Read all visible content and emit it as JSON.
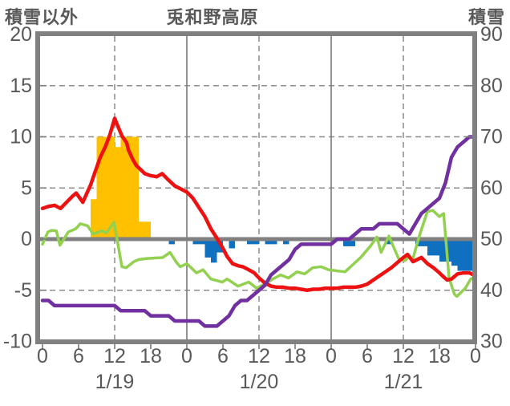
{
  "title": "兎和野高原",
  "left_axis_title": "積雪以外",
  "right_axis_title": "積雪",
  "colors": {
    "frame": "#808080",
    "grid": "#8c8c8c",
    "text": "#595959",
    "red": "#ee1111",
    "green": "#92d050",
    "purple": "#7030a0",
    "orange": "#ffc000",
    "blue": "#1070c0"
  },
  "chart_data": {
    "type": "combo",
    "title": "兎和野高原",
    "left_axis": {
      "title": "積雪以外",
      "min": -10,
      "max": 20,
      "ticks": [
        20,
        15,
        10,
        5,
        0,
        -5,
        -10
      ]
    },
    "right_axis": {
      "title": "積雪",
      "min": 30,
      "max": 90,
      "ticks": [
        90,
        80,
        70,
        60,
        50,
        40,
        30
      ]
    },
    "x_axis": {
      "hours_total": 72,
      "tick_step_hours": 6,
      "tick_labels": [
        "0",
        "6",
        "12",
        "18",
        "0",
        "6",
        "12",
        "18",
        "0",
        "6",
        "12",
        "18",
        "0"
      ],
      "date_labels": [
        "1/19",
        "1/20",
        "1/21"
      ],
      "day_boundaries_hours": [
        24,
        48
      ],
      "noon_gridlines_hours": [
        12,
        36,
        60
      ]
    },
    "series": [
      {
        "name": "orange-bars",
        "type": "bar",
        "axis": "left",
        "color": "#ffc000",
        "points": [
          [
            8,
            3.9
          ],
          [
            9,
            10
          ],
          [
            10,
            10
          ],
          [
            11,
            10
          ],
          [
            12,
            9
          ],
          [
            13,
            10
          ],
          [
            14,
            10
          ],
          [
            15,
            10
          ],
          [
            16,
            1.7
          ],
          [
            17,
            1.7
          ]
        ]
      },
      {
        "name": "blue-bars",
        "type": "bar",
        "axis": "left",
        "color": "#1070c0",
        "points": [
          [
            21,
            -0.5
          ],
          [
            25,
            -0.5
          ],
          [
            26,
            -0.5
          ],
          [
            27,
            -1.8
          ],
          [
            28,
            -2.3
          ],
          [
            29,
            -1.3
          ],
          [
            31,
            -0.9
          ],
          [
            34,
            -0.5
          ],
          [
            35,
            -0.5
          ],
          [
            37,
            -0.5
          ],
          [
            38,
            -0.5
          ],
          [
            40,
            -0.5
          ],
          [
            50,
            -0.7
          ],
          [
            51,
            -0.7
          ],
          [
            57,
            -0.5
          ],
          [
            62,
            -0.7
          ],
          [
            63,
            -0.7
          ],
          [
            64,
            -1.6
          ],
          [
            65,
            -1.6
          ],
          [
            66,
            -2.2
          ],
          [
            67,
            -2.2
          ],
          [
            68,
            -2.6
          ],
          [
            69,
            -3.1
          ],
          [
            70,
            -3.1
          ],
          [
            71,
            -3.1
          ]
        ]
      },
      {
        "name": "green-line",
        "type": "line",
        "axis": "left",
        "color": "#92d050",
        "width": 3.5,
        "points": [
          [
            0,
            -0.5
          ],
          [
            0.9,
            0.7
          ],
          [
            1.5,
            0.85
          ],
          [
            2.3,
            0.8
          ],
          [
            2.9,
            -0.6
          ],
          [
            4.3,
            0.7
          ],
          [
            5.5,
            1.0
          ],
          [
            6.3,
            1.5
          ],
          [
            7.5,
            1.3
          ],
          [
            8.4,
            0.5
          ],
          [
            9.9,
            0.8
          ],
          [
            10.6,
            0.6
          ],
          [
            11.9,
            1.65
          ],
          [
            13.2,
            -2.7
          ],
          [
            13.9,
            -2.8
          ],
          [
            15.2,
            -2.2
          ],
          [
            16,
            -2.0
          ],
          [
            17.2,
            -1.9
          ],
          [
            18.5,
            -1.85
          ],
          [
            20,
            -1.8
          ],
          [
            21.2,
            -1.3
          ],
          [
            22.3,
            -2.3
          ],
          [
            22.9,
            -2.7
          ],
          [
            24,
            -2.4
          ],
          [
            25.6,
            -3.3
          ],
          [
            26.7,
            -3.0
          ],
          [
            28,
            -3.9
          ],
          [
            29.9,
            -4.2
          ],
          [
            30.7,
            -3.9
          ],
          [
            32.5,
            -4.6
          ],
          [
            34.3,
            -4.2
          ],
          [
            35.6,
            -4.8
          ],
          [
            36.9,
            -4.4
          ],
          [
            38.3,
            -3.9
          ],
          [
            39.6,
            -3.5
          ],
          [
            40.9,
            -3.8
          ],
          [
            42.3,
            -3.2
          ],
          [
            43.6,
            -3.4
          ],
          [
            44.9,
            -2.8
          ],
          [
            46.3,
            -2.7
          ],
          [
            47.6,
            -3.0
          ],
          [
            50.3,
            -3.2
          ],
          [
            52.9,
            -1.8
          ],
          [
            54.5,
            -0.7
          ],
          [
            55.6,
            0.2
          ],
          [
            56.3,
            -1.3
          ],
          [
            57.6,
            0.3
          ],
          [
            59.2,
            -1.9
          ],
          [
            60.3,
            -2.1
          ],
          [
            60.9,
            -1.7
          ],
          [
            61.5,
            -2.1
          ],
          [
            62.7,
            0.4
          ],
          [
            64,
            2.7
          ],
          [
            64.9,
            2.8
          ],
          [
            66,
            2.2
          ],
          [
            66.7,
            2.5
          ],
          [
            67.6,
            -3.8
          ],
          [
            68.5,
            -5.4
          ],
          [
            68.9,
            -5.6
          ],
          [
            70.3,
            -4.8
          ],
          [
            71.2,
            -3.9
          ],
          [
            72,
            -3.7
          ]
        ]
      },
      {
        "name": "red-line",
        "type": "line",
        "axis": "left",
        "color": "#ee1111",
        "width": 4.5,
        "points": [
          [
            0,
            3.0
          ],
          [
            1,
            3.2
          ],
          [
            2,
            3.3
          ],
          [
            3,
            3.0
          ],
          [
            4,
            3.6
          ],
          [
            5,
            4.2
          ],
          [
            5.6,
            4.5
          ],
          [
            6.7,
            3.6
          ],
          [
            8,
            5.3
          ],
          [
            8.7,
            6.5
          ],
          [
            9.6,
            8.0
          ],
          [
            10.5,
            9.1
          ],
          [
            11.2,
            10.2
          ],
          [
            12,
            11.8
          ],
          [
            12.7,
            10.8
          ],
          [
            13.2,
            10.1
          ],
          [
            14,
            9.4
          ],
          [
            14.3,
            8.7
          ],
          [
            15,
            7.8
          ],
          [
            15.6,
            7.2
          ],
          [
            16.3,
            6.8
          ],
          [
            17,
            6.4
          ],
          [
            18,
            6.2
          ],
          [
            19,
            6.1
          ],
          [
            19.9,
            6.4
          ],
          [
            20.9,
            5.8
          ],
          [
            22,
            5.2
          ],
          [
            23,
            4.9
          ],
          [
            24,
            4.6
          ],
          [
            25,
            4.0
          ],
          [
            26,
            3.1
          ],
          [
            27,
            2.2
          ],
          [
            28,
            1.0
          ],
          [
            29,
            0.1
          ],
          [
            30,
            -0.9
          ],
          [
            30.7,
            -1.7
          ],
          [
            31.6,
            -2.4
          ],
          [
            32.5,
            -2.6
          ],
          [
            33.3,
            -2.7
          ],
          [
            34.3,
            -3.0
          ],
          [
            35.2,
            -3.3
          ],
          [
            36,
            -3.8
          ],
          [
            37,
            -4.3
          ],
          [
            38,
            -4.6
          ],
          [
            39,
            -4.7
          ],
          [
            40,
            -4.7
          ],
          [
            41,
            -4.8
          ],
          [
            42,
            -4.8
          ],
          [
            43,
            -4.9
          ],
          [
            44,
            -5.0
          ],
          [
            45,
            -4.9
          ],
          [
            46,
            -4.9
          ],
          [
            47,
            -4.8
          ],
          [
            48,
            -4.8
          ],
          [
            49,
            -4.8
          ],
          [
            50,
            -4.7
          ],
          [
            51,
            -4.7
          ],
          [
            52,
            -4.7
          ],
          [
            53,
            -4.6
          ],
          [
            54,
            -4.4
          ],
          [
            55,
            -4.0
          ],
          [
            56,
            -3.6
          ],
          [
            57,
            -3.2
          ],
          [
            58,
            -2.8
          ],
          [
            59,
            -2.3
          ],
          [
            60,
            -1.8
          ],
          [
            60.7,
            -1.5
          ],
          [
            61.6,
            -2.2
          ],
          [
            63,
            -1.8
          ],
          [
            64,
            -2.4
          ],
          [
            65,
            -2.8
          ],
          [
            66,
            -3.3
          ],
          [
            66.7,
            -3.7
          ],
          [
            67.3,
            -4.0
          ],
          [
            68,
            -3.9
          ],
          [
            69,
            -3.4
          ],
          [
            70,
            -3.3
          ],
          [
            71,
            -3.3
          ],
          [
            72,
            -3.6
          ]
        ]
      },
      {
        "name": "purple-line",
        "type": "line",
        "axis": "right",
        "color": "#7030a0",
        "width": 4.5,
        "values_hourly": [
          38,
          38,
          37,
          37,
          37,
          37,
          37,
          37,
          37,
          37,
          37,
          37,
          37,
          36,
          36,
          36,
          36,
          36,
          35,
          35,
          35,
          35,
          34,
          34,
          34,
          34,
          34,
          33,
          33,
          33,
          34,
          35,
          37,
          38,
          38,
          39,
          40,
          41,
          43,
          44,
          45,
          46,
          48,
          49,
          49,
          49,
          49,
          49,
          49,
          50,
          50,
          50,
          51,
          52,
          52,
          52,
          53,
          53,
          53,
          53,
          52,
          51,
          53,
          55,
          56,
          57,
          58,
          61,
          66,
          68,
          69,
          70,
          70
        ]
      }
    ]
  }
}
